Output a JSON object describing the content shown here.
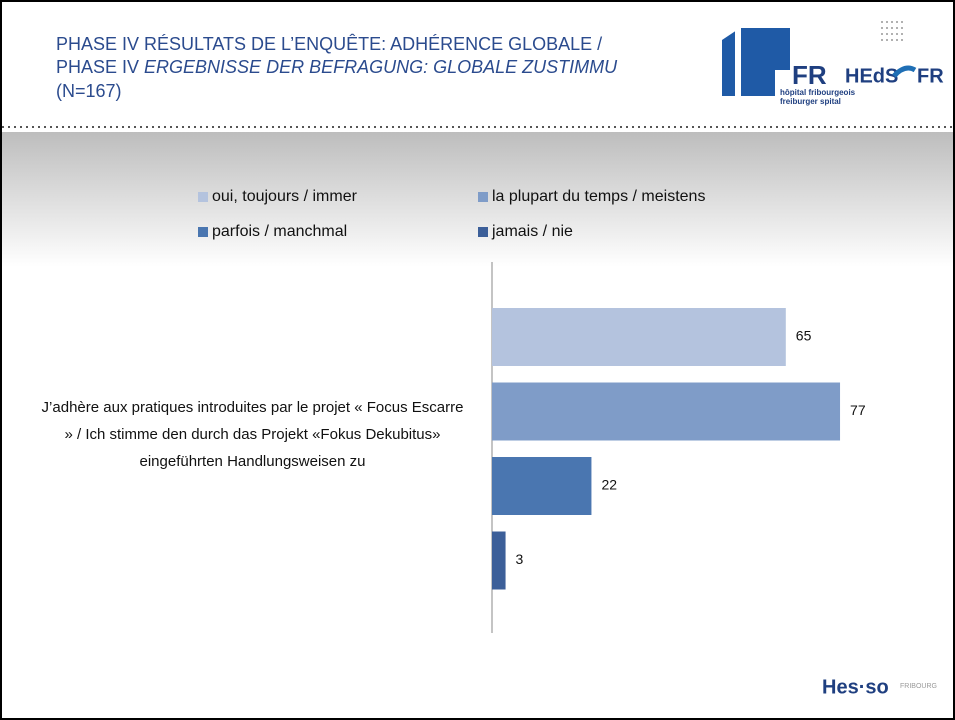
{
  "header": {
    "title_line1": "PHASE IV RÉSULTATS DE L’ENQUÊTE: ADHÉRENCE GLOBALE /",
    "title_line2_plain": "PHASE IV ",
    "title_line2_italic": "ERGEBNISSE DER BEFRAGUNG: GLOBALE ZUSTIMMU",
    "title_line3": "(N=167)"
  },
  "logos": {
    "hfr": "FR",
    "hfr_line1": "hôpital fribourgeois",
    "hfr_line2": "freiburger spital",
    "heds": "HEdS",
    "heds_fr": "FR",
    "hesso": "Hes·so",
    "hesso_sub": "FRIBOURG"
  },
  "chart_data": {
    "type": "hbar",
    "categories": [
      "J’adhère aux pratiques introduites par le projet « Focus Escarre » / Ich stimme den durch das Projekt «Fokus Dekubitus» eingeführten Handlungsweisen zu"
    ],
    "series": [
      {
        "name": "oui, toujours / immer",
        "color": "#b4c3de",
        "values": [
          65
        ]
      },
      {
        "name": "la plupart du temps / meistens",
        "color": "#7f9cc8",
        "values": [
          77
        ]
      },
      {
        "name": "parfois / manchmal",
        "color": "#4a76b0",
        "values": [
          22
        ]
      },
      {
        "name": "jamais / nie",
        "color": "#3c5f99",
        "values": [
          3
        ]
      }
    ],
    "xlim": [
      0,
      100
    ],
    "legend": "top"
  }
}
